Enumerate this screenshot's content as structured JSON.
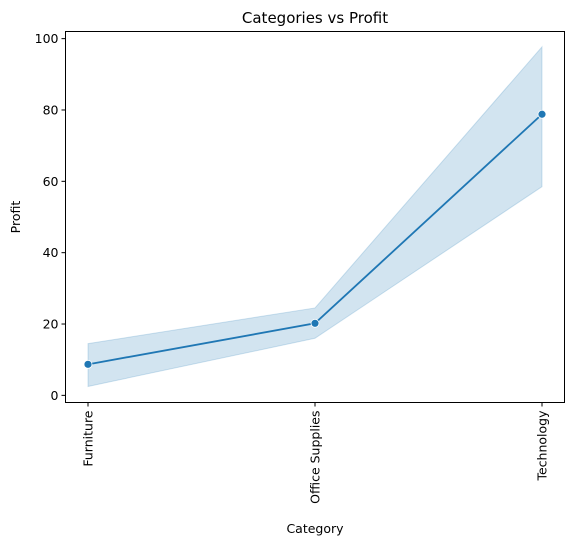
{
  "chart_data": {
    "type": "line",
    "title": "Categories vs Profit",
    "xlabel": "Category",
    "ylabel": "Profit",
    "categories": [
      "Furniture",
      "Office Supplies",
      "Technology"
    ],
    "series": [
      {
        "values": [
          8.7,
          20.2,
          78.8
        ],
        "ci_low": [
          2.5,
          16.0,
          58.5
        ],
        "ci_high": [
          14.5,
          24.5,
          97.7
        ]
      }
    ],
    "ylim": [
      -2,
      102
    ],
    "yticks": [
      0,
      20,
      40,
      60,
      80,
      100
    ],
    "grid": false,
    "colors": {
      "line": "#1f77b4",
      "band": "#1f77b4"
    }
  }
}
